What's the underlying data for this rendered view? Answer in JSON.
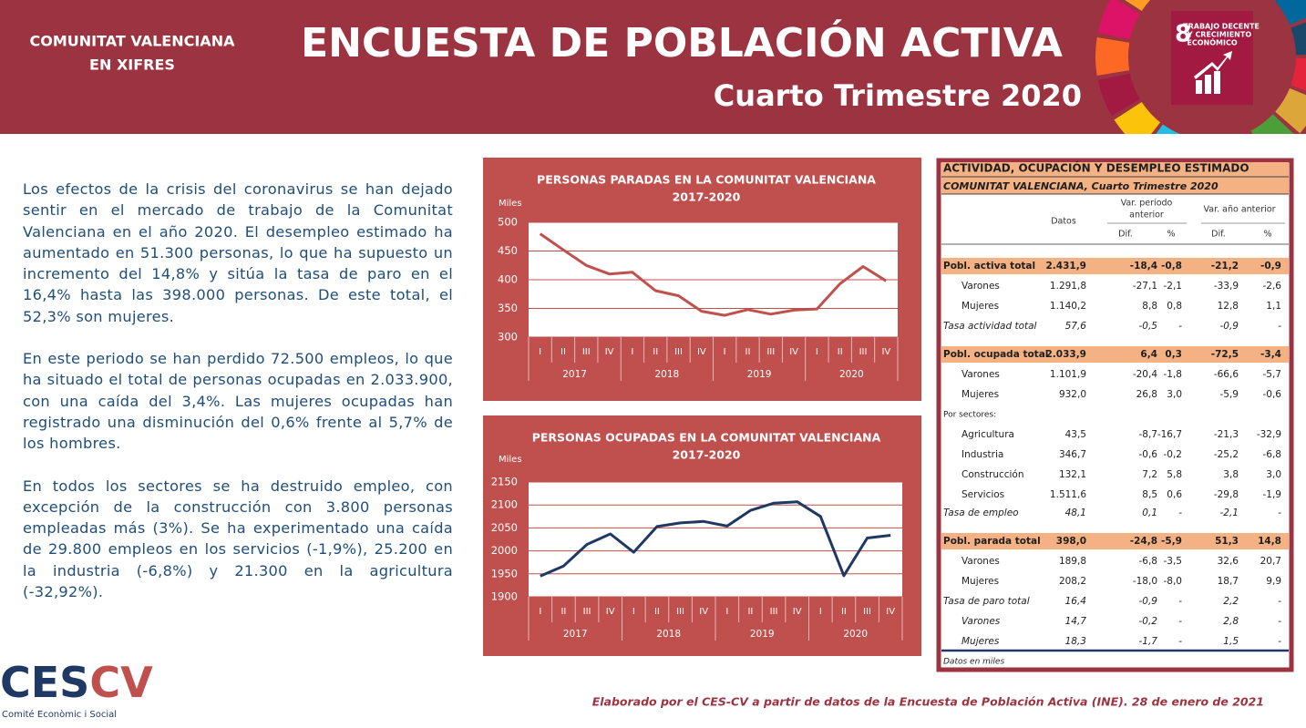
{
  "header": {
    "region": [
      "COMUNITAT VALENCIANA",
      "EN XIFRES"
    ],
    "title": "ENCUESTA DE POBLACIÓN ACTIVA",
    "subtitle": "Cuarto Trimestre 2020",
    "sdg": {
      "number": "8",
      "label": [
        "TRABAJO DECENTE",
        "Y CRECIMIENTO",
        "ECONÓMICO"
      ]
    }
  },
  "paragraphs": [
    "Los efectos de la crisis del coronavirus se han dejado sentir en el mercado de trabajo de la Comunitat Valenciana en el año 2020. El desempleo estimado ha aumentado en 51.300 personas, lo que ha supuesto un incremento del 14,8% y sitúa la tasa de paro en el 16,4% hasta las 398.000 personas. De este total, el 52,3% son mujeres.",
    "En este periodo se han perdido 72.500 empleos, lo que ha situado el total de personas ocupadas en 2.033.900, con una caída del 3,4%. Las mujeres ocupadas han registrado una disminución del 0,6% frente al 5,7% de los hombres.",
    "En todos los sectores se ha destruido empleo, con excepción de la construcción  con 3.800 personas empleadas más (3%). Se ha experimentado una caída de 29.800 empleos en los servicios (-1,9%), 25.200 en la industria (-6,8%) y 21.300 en la agricultura (-32,92%)."
  ],
  "chart_data": [
    {
      "type": "line",
      "title": "PERSONAS PARADAS EN LA COMUNITAT VALENCIANA",
      "subtitle": "2017-2020",
      "y_label": "Miles",
      "categories": [
        "I",
        "II",
        "III",
        "IV",
        "I",
        "II",
        "III",
        "IV",
        "I",
        "II",
        "III",
        "IV",
        "I",
        "II",
        "III",
        "IV"
      ],
      "groups": [
        "2017",
        "2018",
        "2019",
        "2020"
      ],
      "values": [
        480,
        452,
        425,
        410,
        413,
        381,
        372,
        345,
        338,
        348,
        340,
        347,
        349,
        393,
        423,
        398
      ],
      "color": "#c0504d",
      "ylim": [
        300,
        500
      ],
      "yticks": [
        300,
        350,
        400,
        450,
        500
      ],
      "grid": true
    },
    {
      "type": "line",
      "title": "PERSONAS OCUPADAS EN LA COMUNITAT VALENCIANA",
      "subtitle": "2017-2020",
      "y_label": "Miles",
      "categories": [
        "I",
        "II",
        "III",
        "IV",
        "I",
        "II",
        "III",
        "IV",
        "I",
        "II",
        "III",
        "IV",
        "I",
        "II",
        "III",
        "IV"
      ],
      "groups": [
        "2017",
        "2018",
        "2019",
        "2020"
      ],
      "values": [
        1945,
        1967,
        2014,
        2037,
        1997,
        2053,
        2061,
        2064,
        2054,
        2088,
        2104,
        2107,
        2075,
        1946,
        2028,
        2034
      ],
      "color": "#1f3864",
      "ylim": [
        1900,
        2150
      ],
      "yticks": [
        1900,
        1950,
        2000,
        2050,
        2100,
        2150
      ],
      "grid": true
    }
  ],
  "table": {
    "title": "ACTIVIDAD, OCUPACIÓN Y DESEMPLEO ESTIMADO",
    "subtitle": "COMUNITAT  VALENCIANA, Cuarto Trimestre 2020",
    "head": {
      "datos": "Datos",
      "group1": [
        "Var. período",
        "anterior"
      ],
      "group2": "Var. año anterior",
      "sub": [
        "Dif.",
        "%",
        "Dif.",
        "%"
      ]
    },
    "rows": [
      [
        "Pobl. activa total",
        "2.431,9",
        "-18,4",
        "-0,8",
        "-21,2",
        "-0,9"
      ],
      [
        "Varones",
        "1.291,8",
        "-27,1",
        "-2,1",
        "-33,9",
        "-2,6"
      ],
      [
        "Mujeres",
        "1.140,2",
        "8,8",
        "0,8",
        "12,8",
        "1,1"
      ],
      [
        "Tasa actividad total",
        "57,6",
        "-0,5",
        "-",
        "-0,9",
        "-"
      ],
      [
        "Pobl. ocupada total",
        "2.033,9",
        "6,4",
        "0,3",
        "-72,5",
        "-3,4"
      ],
      [
        "Varones",
        "1.101,9",
        "-20,4",
        "-1,8",
        "-66,6",
        "-5,7"
      ],
      [
        "Mujeres",
        "932,0",
        "26,8",
        "3,0",
        "-5,9",
        "-0,6"
      ],
      [
        "Por sectores:"
      ],
      [
        "Agricultura",
        "43,5",
        "-8,7",
        "-16,7",
        "-21,3",
        "-32,9"
      ],
      [
        "Industria",
        "346,7",
        "-0,6",
        "-0,2",
        "-25,2",
        "-6,8"
      ],
      [
        "Construcción",
        "132,1",
        "7,2",
        "5,8",
        "3,8",
        "3,0"
      ],
      [
        "Servicios",
        "1.511,6",
        "8,5",
        "0,6",
        "-29,8",
        "-1,9"
      ],
      [
        "Tasa de empleo",
        "48,1",
        "0,1",
        "-",
        "-2,1",
        "-"
      ],
      [
        "Pobl. parada total",
        "398,0",
        "-24,8",
        "-5,9",
        "51,3",
        "14,8"
      ],
      [
        "Varones",
        "189,8",
        "-6,8",
        "-3,5",
        "32,6",
        "20,7"
      ],
      [
        "Mujeres",
        "208,2",
        "-18,0",
        "-8,0",
        "18,7",
        "9,9"
      ],
      [
        "Tasa de paro total",
        "16,4",
        "-0,9",
        "-",
        "2,2",
        "-"
      ],
      [
        "Varones",
        "14,7",
        "-0,2",
        "-",
        "2,8",
        "-"
      ],
      [
        "Mujeres",
        "18,3",
        "-1,7",
        "-",
        "1,5",
        "-"
      ]
    ],
    "note": "Datos en miles"
  },
  "footer": {
    "credit": "Elaborado por el CES-CV a partir de datos de la Encuesta de Población Activa (INE). 28 de enero de 2021",
    "logo": {
      "parts": [
        "CES",
        "CV"
      ],
      "tagline": "Comité Econòmic i Social"
    }
  }
}
